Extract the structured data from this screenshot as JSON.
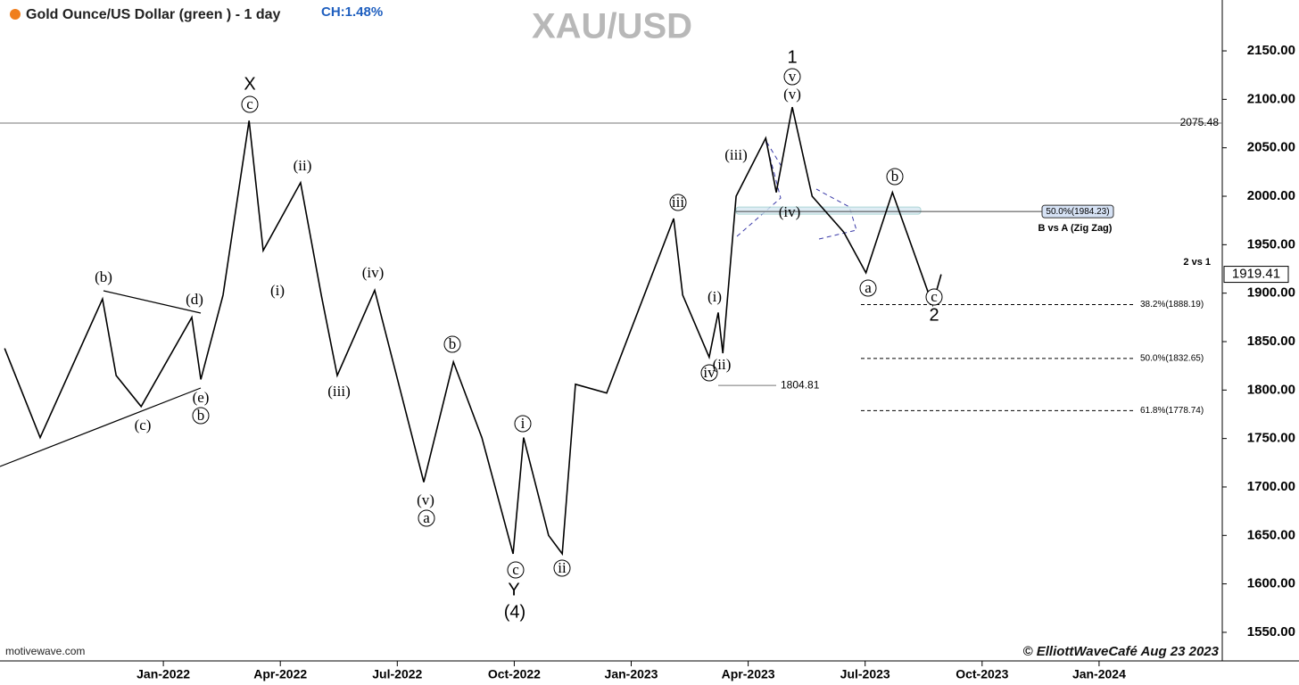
{
  "chart_data": {
    "type": "line",
    "title": "Gold Ounce/US Dollar (green ) - 1 day",
    "change": "CH:1.48%",
    "watermark": "XAU/USD",
    "source": "motivewave.com",
    "copyright": "© ElliottWaveCafé Aug 23 2023",
    "x": [
      -4.07,
      -3.16,
      -1.56,
      -1.21,
      -0.57,
      0.73,
      0.96,
      1.53,
      2.2,
      2.56,
      3.52,
      4.05,
      4.46,
      5.42,
      6.68,
      7.44,
      8.17,
      8.97,
      9.24,
      9.88,
      10.23,
      10.57,
      11.37,
      13.09,
      13.32,
      14.0,
      14.23,
      14.35,
      14.69,
      15.45,
      15.72,
      16.13,
      16.64,
      17.45,
      18.02,
      18.7,
      19.73,
      19.95
    ],
    "series": [
      {
        "name": "Gold Ounce/US Dollar",
        "color": "#000000",
        "values": [
          1843,
          1751,
          1894,
          1815,
          1783,
          1875,
          1811,
          1898,
          2078,
          1944,
          2014,
          1898,
          1815,
          1903,
          1705,
          1829,
          1751,
          1631,
          1751,
          1650,
          1631,
          1806,
          1797,
          1977,
          1898,
          1834,
          1880,
          1838,
          2000,
          2060,
          2004,
          2092,
          2000,
          1963,
          1921,
          2004,
          1888,
          1919.41
        ]
      }
    ],
    "last_price": 1919.41,
    "xlim": [
      -4.19,
      27.16
    ],
    "ylim": [
      1520.5,
      2202.5
    ],
    "xticks": [
      {
        "value": 0,
        "label": "Jan-2022"
      },
      {
        "value": 3,
        "label": "Apr-2022"
      },
      {
        "value": 6,
        "label": "Jul-2022"
      },
      {
        "value": 9,
        "label": "Oct-2022"
      },
      {
        "value": 12,
        "label": "Jan-2023"
      },
      {
        "value": 15,
        "label": "Apr-2023"
      },
      {
        "value": 18,
        "label": "Jul-2023"
      },
      {
        "value": 21,
        "label": "Oct-2023"
      },
      {
        "value": 24,
        "label": "Jan-2024"
      }
    ],
    "yticks": [
      {
        "value": 1550,
        "label": "1550.00"
      },
      {
        "value": 1600,
        "label": "1600.00"
      },
      {
        "value": 1650,
        "label": "1650.00"
      },
      {
        "value": 1700,
        "label": "1700.00"
      },
      {
        "value": 1750,
        "label": "1750.00"
      },
      {
        "value": 1800,
        "label": "1800.00"
      },
      {
        "value": 1850,
        "label": "1850.00"
      },
      {
        "value": 1900,
        "label": "1900.00"
      },
      {
        "value": 1950,
        "label": "1950.00"
      },
      {
        "value": 2000,
        "label": "2000.00"
      },
      {
        "value": 2050,
        "label": "2050.00"
      },
      {
        "value": 2100,
        "label": "2100.00"
      },
      {
        "value": 2150,
        "label": "2150.00"
      }
    ],
    "hlines": [
      2075.48,
      1804.81
    ],
    "fib_levels": [
      {
        "value": 1888.19,
        "label": "38.2%(1888.19)"
      },
      {
        "value": 1832.65,
        "label": "50.0%(1832.65)"
      },
      {
        "value": 1778.74,
        "label": "61.8%(1778.74)"
      }
    ],
    "zone": {
      "value": 1984.23,
      "label": "50.0%(1984.23)",
      "note": "B vs A (Zig Zag)"
    },
    "note_2vs1": "2 vs 1",
    "annotations": [
      "(b)",
      "(d)",
      "(c)",
      "(e)",
      "b",
      "X",
      "c",
      "(ii)",
      "(i)",
      "(iv)",
      "(iii)",
      "(v)",
      "a",
      "b",
      "i",
      "c",
      "Y",
      "(4)",
      "ii",
      "iii",
      "(iii)",
      "(i)",
      "iv",
      "(ii)",
      "1",
      "v",
      "(v)",
      "(iv)",
      "b",
      "a",
      "c",
      "2"
    ]
  }
}
